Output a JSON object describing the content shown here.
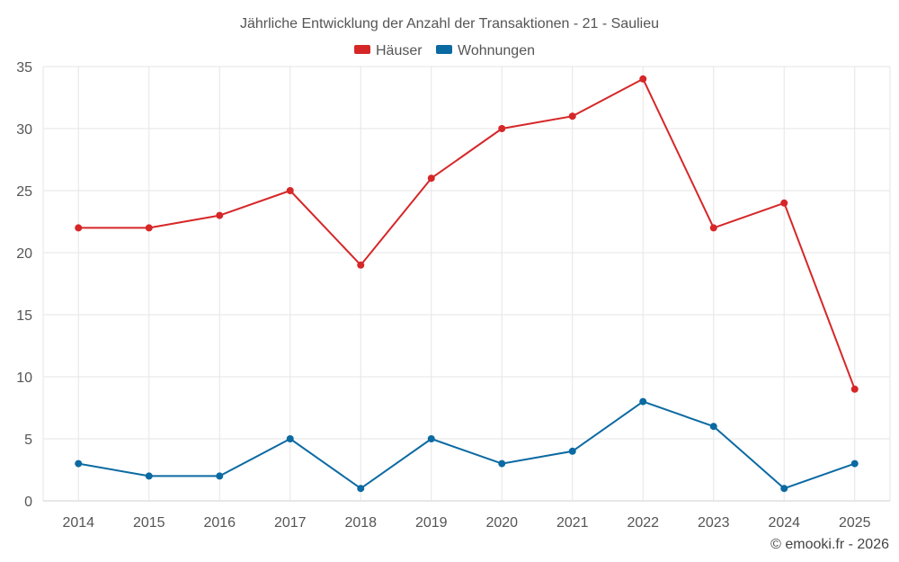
{
  "chart_data": {
    "type": "line",
    "title": "Jährliche Entwicklung der Anzahl der Transaktionen - 21 - Saulieu",
    "categories": [
      "2014",
      "2015",
      "2016",
      "2017",
      "2018",
      "2019",
      "2020",
      "2021",
      "2022",
      "2023",
      "2024",
      "2025"
    ],
    "series": [
      {
        "name": "Häuser",
        "color": "#d62728",
        "values": [
          22,
          22,
          23,
          25,
          19,
          26,
          30,
          31,
          34,
          22,
          24,
          9
        ]
      },
      {
        "name": "Wohnungen",
        "color": "#0b6aa2",
        "values": [
          3,
          2,
          2,
          5,
          1,
          5,
          3,
          4,
          8,
          6,
          1,
          3
        ]
      }
    ],
    "ylim": [
      0,
      35
    ],
    "yticks": [
      0,
      5,
      10,
      15,
      20,
      25,
      30,
      35
    ],
    "xlabel": "",
    "ylabel": "",
    "grid": true,
    "legend": "top-center"
  },
  "credit": "© emooki.fr - 2026"
}
